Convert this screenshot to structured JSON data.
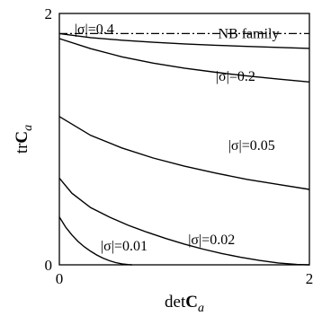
{
  "chart_data": {
    "type": "line",
    "xlabel": "detC_a",
    "xlabel_main": "det",
    "xlabel_bold": "C",
    "xlabel_sub": "a",
    "ylabel_main": "tr",
    "ylabel_bold": "C",
    "ylabel_sub": "a",
    "xlim": [
      0,
      2
    ],
    "ylim": [
      0,
      2
    ],
    "x_ticks": [
      {
        "value": 0,
        "label": "0"
      },
      {
        "value": 2,
        "label": "2"
      }
    ],
    "y_ticks": [
      {
        "value": 0,
        "label": "0"
      },
      {
        "value": 2,
        "label": "2"
      }
    ],
    "grid": false,
    "series": [
      {
        "name": "|σ|=0.4",
        "style": "solid",
        "x": [
          0,
          0.25,
          0.5,
          0.75,
          1.0,
          1.25,
          1.5,
          1.75,
          2.0
        ],
        "y": [
          1.84,
          1.808,
          1.787,
          1.771,
          1.758,
          1.747,
          1.738,
          1.73,
          1.722
        ]
      },
      {
        "name": "|σ|=0.2",
        "style": "solid",
        "x": [
          0,
          0.25,
          0.5,
          0.75,
          1.0,
          1.25,
          1.5,
          1.75,
          2.0
        ],
        "y": [
          1.8,
          1.72,
          1.655,
          1.605,
          1.565,
          1.532,
          1.503,
          1.478,
          1.455
        ]
      },
      {
        "name": "|σ|=0.05",
        "style": "solid",
        "x": [
          0,
          0.25,
          0.5,
          0.75,
          1.0,
          1.25,
          1.5,
          1.75,
          2.0
        ],
        "y": [
          1.18,
          1.03,
          0.93,
          0.85,
          0.785,
          0.73,
          0.68,
          0.64,
          0.6
        ]
      },
      {
        "name": "|σ|=0.02",
        "style": "solid",
        "x": [
          0,
          0.1,
          0.25,
          0.4,
          0.55,
          0.7,
          0.85,
          1.0,
          1.15,
          1.3,
          1.45,
          1.6,
          1.75,
          1.9,
          2.0
        ],
        "y": [
          0.69,
          0.57,
          0.455,
          0.38,
          0.315,
          0.26,
          0.21,
          0.165,
          0.125,
          0.09,
          0.06,
          0.035,
          0.015,
          0.003,
          0.0
        ]
      },
      {
        "name": "|σ|=0.01",
        "style": "solid",
        "x": [
          0,
          0.05,
          0.1,
          0.15,
          0.2,
          0.25,
          0.3,
          0.35,
          0.4,
          0.45,
          0.5,
          0.55,
          0.58
        ],
        "y": [
          0.38,
          0.3,
          0.238,
          0.186,
          0.143,
          0.108,
          0.078,
          0.053,
          0.033,
          0.018,
          0.008,
          0.002,
          0.0
        ]
      },
      {
        "name": "NB family",
        "style": "dashdot",
        "x": [
          0,
          2.0
        ],
        "y": [
          1.84,
          1.84
        ]
      }
    ],
    "annotations": [
      {
        "text": "|σ|=0.4",
        "x": 0.12,
        "y": 1.875
      },
      {
        "text": "NB family",
        "x": 1.27,
        "y": 1.84
      },
      {
        "text": "|σ|=0.2",
        "x": 1.25,
        "y": 1.5
      },
      {
        "text": "|σ|=0.05",
        "x": 1.35,
        "y": 0.95
      },
      {
        "text": "|σ|=0.02",
        "x": 1.03,
        "y": 0.2
      },
      {
        "text": "|σ|=0.01",
        "x": 0.33,
        "y": 0.15
      }
    ]
  }
}
